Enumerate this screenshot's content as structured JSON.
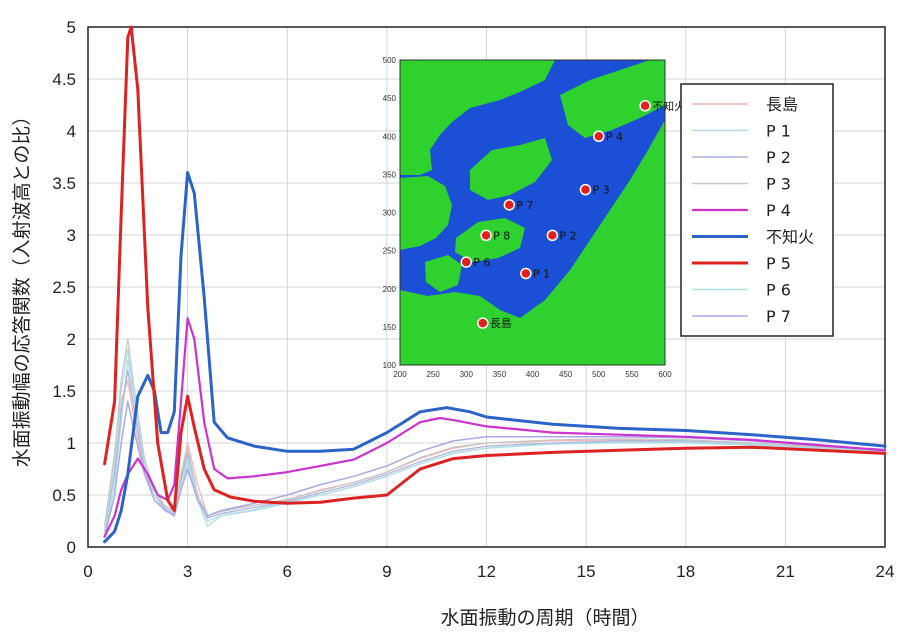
{
  "chart_data": {
    "type": "line",
    "xlabel": "水面振動の周期（時間）",
    "ylabel": "水面振動幅の応答関数（入射波高との比）",
    "xlim": [
      0,
      24
    ],
    "ylim": [
      0,
      5
    ],
    "xticks": [
      "0",
      "3",
      "6",
      "9",
      "12",
      "15",
      "18",
      "21",
      "24"
    ],
    "yticks": [
      "0",
      "0.5",
      "1",
      "1.5",
      "2",
      "2.5",
      "3",
      "3.5",
      "4",
      "4.5",
      "5"
    ],
    "grid": true,
    "legend_position": "right",
    "series": [
      {
        "name": "長島",
        "color": "#f4b6b6",
        "width": 1.3,
        "x": [
          0.5,
          0.8,
          1.0,
          1.2,
          1.4,
          1.7,
          2.0,
          2.3,
          2.6,
          2.8,
          3.0,
          3.3,
          3.6,
          4.0,
          5,
          6,
          7,
          8,
          9,
          10,
          11,
          12,
          14,
          16,
          18,
          20,
          22,
          24
        ],
        "y": [
          0.2,
          0.9,
          1.4,
          1.6,
          1.2,
          0.7,
          0.5,
          0.4,
          0.35,
          0.7,
          1.0,
          0.6,
          0.3,
          0.35,
          0.4,
          0.45,
          0.55,
          0.62,
          0.72,
          0.85,
          0.95,
          1.0,
          1.02,
          1.03,
          1.03,
          1.0,
          0.96,
          0.93
        ]
      },
      {
        "name": "P 1",
        "color": "#b5dcec",
        "width": 1.3,
        "x": [
          0.5,
          0.8,
          1.0,
          1.2,
          1.4,
          1.7,
          2.0,
          2.3,
          2.6,
          2.8,
          3.0,
          3.3,
          3.6,
          4.0,
          5,
          6,
          7,
          8,
          9,
          10,
          11,
          12,
          14,
          16,
          18,
          20,
          22,
          24
        ],
        "y": [
          0.1,
          0.6,
          1.2,
          1.8,
          1.4,
          0.8,
          0.5,
          0.35,
          0.3,
          0.6,
          0.8,
          0.45,
          0.25,
          0.3,
          0.35,
          0.42,
          0.5,
          0.58,
          0.68,
          0.8,
          0.9,
          0.95,
          0.99,
          1.01,
          1.01,
          0.99,
          0.95,
          0.92
        ]
      },
      {
        "name": "P 2",
        "color": "#aab3dd",
        "width": 1.3,
        "x": [
          0.5,
          0.8,
          1.0,
          1.2,
          1.4,
          1.7,
          2.0,
          2.3,
          2.6,
          2.8,
          3.0,
          3.3,
          3.6,
          4.0,
          5,
          6,
          7,
          8,
          9,
          10,
          11,
          12,
          14,
          16,
          18,
          20,
          22,
          24
        ],
        "y": [
          0.15,
          0.7,
          1.3,
          1.7,
          1.3,
          0.75,
          0.5,
          0.38,
          0.32,
          0.65,
          0.9,
          0.5,
          0.28,
          0.32,
          0.38,
          0.44,
          0.52,
          0.6,
          0.7,
          0.82,
          0.92,
          0.97,
          1.0,
          1.02,
          1.02,
          1.0,
          0.96,
          0.93
        ]
      },
      {
        "name": "P 3",
        "color": "#c8c8c8",
        "width": 1.3,
        "x": [
          0.5,
          0.8,
          1.0,
          1.2,
          1.4,
          1.7,
          2.0,
          2.3,
          2.6,
          2.8,
          3.0,
          3.3,
          3.6,
          4.0,
          5,
          6,
          7,
          8,
          9,
          10,
          11,
          12,
          14,
          16,
          18,
          20,
          22,
          24
        ],
        "y": [
          0.2,
          0.9,
          1.6,
          2.0,
          1.5,
          0.85,
          0.55,
          0.4,
          0.34,
          0.7,
          0.95,
          0.5,
          0.3,
          0.34,
          0.4,
          0.46,
          0.54,
          0.62,
          0.72,
          0.86,
          0.96,
          1.0,
          1.03,
          1.04,
          1.03,
          1.0,
          0.96,
          0.93
        ]
      },
      {
        "name": "P 4",
        "color": "#cc33cc",
        "width": 2.2,
        "x": [
          0.5,
          0.8,
          1.0,
          1.2,
          1.5,
          1.8,
          2.1,
          2.4,
          2.6,
          2.8,
          3.0,
          3.2,
          3.5,
          3.8,
          4.2,
          5,
          6,
          7,
          8,
          9,
          10,
          10.6,
          11,
          12,
          14,
          16,
          18,
          20,
          22,
          24
        ],
        "y": [
          0.1,
          0.3,
          0.55,
          0.7,
          0.85,
          0.7,
          0.5,
          0.45,
          0.6,
          1.4,
          2.2,
          2.0,
          1.2,
          0.75,
          0.66,
          0.68,
          0.72,
          0.78,
          0.84,
          1.0,
          1.2,
          1.24,
          1.22,
          1.16,
          1.1,
          1.08,
          1.06,
          1.03,
          0.98,
          0.93
        ]
      },
      {
        "name": "不知火",
        "color": "#2b63c8",
        "width": 3,
        "x": [
          0.5,
          0.8,
          1.0,
          1.2,
          1.5,
          1.8,
          2.0,
          2.2,
          2.4,
          2.6,
          2.8,
          3.0,
          3.2,
          3.5,
          3.8,
          4.2,
          5,
          6,
          7,
          8,
          9,
          10,
          10.8,
          11.5,
          12,
          14,
          16,
          18,
          20,
          22,
          24
        ],
        "y": [
          0.05,
          0.15,
          0.35,
          0.7,
          1.45,
          1.65,
          1.5,
          1.1,
          1.1,
          1.3,
          2.8,
          3.6,
          3.4,
          2.4,
          1.2,
          1.05,
          0.97,
          0.92,
          0.92,
          0.94,
          1.1,
          1.3,
          1.34,
          1.3,
          1.25,
          1.18,
          1.14,
          1.12,
          1.08,
          1.03,
          0.97
        ]
      },
      {
        "name": "P 5",
        "color": "#dd2222",
        "width": 3,
        "x": [
          0.5,
          0.8,
          1.0,
          1.2,
          1.3,
          1.5,
          1.8,
          2.1,
          2.4,
          2.6,
          2.8,
          3.0,
          3.2,
          3.5,
          3.8,
          4.3,
          5,
          6,
          7,
          8,
          9,
          10,
          11,
          12,
          14,
          16,
          18,
          20,
          22,
          24
        ],
        "y": [
          0.8,
          1.4,
          3.2,
          4.9,
          5.0,
          4.4,
          2.3,
          1.0,
          0.45,
          0.35,
          1.1,
          1.45,
          1.15,
          0.75,
          0.55,
          0.48,
          0.44,
          0.42,
          0.43,
          0.47,
          0.5,
          0.75,
          0.85,
          0.88,
          0.91,
          0.93,
          0.95,
          0.96,
          0.93,
          0.9
        ]
      },
      {
        "name": "P 6",
        "color": "#aedfe0",
        "width": 1.3,
        "x": [
          0.5,
          0.8,
          1.0,
          1.2,
          1.4,
          1.7,
          2.0,
          2.3,
          2.6,
          2.8,
          3.0,
          3.3,
          3.6,
          4.0,
          5,
          6,
          7,
          8,
          9,
          10,
          11,
          12,
          14,
          16,
          18,
          20,
          22,
          24
        ],
        "y": [
          0.15,
          0.8,
          1.5,
          1.9,
          1.4,
          0.8,
          0.5,
          0.36,
          0.3,
          0.6,
          0.85,
          0.45,
          0.2,
          0.3,
          0.36,
          0.43,
          0.5,
          0.58,
          0.68,
          0.8,
          0.9,
          0.95,
          0.99,
          1.0,
          1.0,
          0.98,
          0.95,
          0.92
        ]
      },
      {
        "name": "P 7",
        "color": "#a9a9e6",
        "width": 1.5,
        "x": [
          0.5,
          0.8,
          1.0,
          1.2,
          1.4,
          1.7,
          2.0,
          2.3,
          2.6,
          2.8,
          3.0,
          3.3,
          3.6,
          4.0,
          5,
          6,
          7,
          8,
          9,
          10,
          11,
          12,
          14,
          16,
          18,
          20,
          22,
          24
        ],
        "y": [
          0.1,
          0.5,
          1.0,
          1.4,
          1.1,
          0.7,
          0.45,
          0.36,
          0.3,
          0.55,
          0.75,
          0.45,
          0.3,
          0.35,
          0.42,
          0.5,
          0.6,
          0.68,
          0.78,
          0.92,
          1.02,
          1.06,
          1.06,
          1.06,
          1.05,
          1.02,
          0.97,
          0.94
        ]
      }
    ]
  },
  "inset_map": {
    "xticks": [
      "200",
      "250",
      "300",
      "350",
      "400",
      "450",
      "500",
      "550",
      "600"
    ],
    "yticks": [
      "500",
      "450",
      "400",
      "350",
      "300",
      "250",
      "200",
      "150",
      "100"
    ],
    "sea_color": "#1a4fd6",
    "land_color": "#2ed12e",
    "stations": [
      {
        "label": "不知火",
        "x": 570,
        "y": 440
      },
      {
        "label": "P 4",
        "x": 500,
        "y": 400
      },
      {
        "label": "P 3",
        "x": 480,
        "y": 330
      },
      {
        "label": "P 7",
        "x": 365,
        "y": 310
      },
      {
        "label": "P 8",
        "x": 330,
        "y": 270
      },
      {
        "label": "P 2",
        "x": 430,
        "y": 270
      },
      {
        "label": "P 6",
        "x": 300,
        "y": 235
      },
      {
        "label": "P 1",
        "x": 390,
        "y": 220
      },
      {
        "label": "長島",
        "x": 325,
        "y": 155
      }
    ]
  }
}
